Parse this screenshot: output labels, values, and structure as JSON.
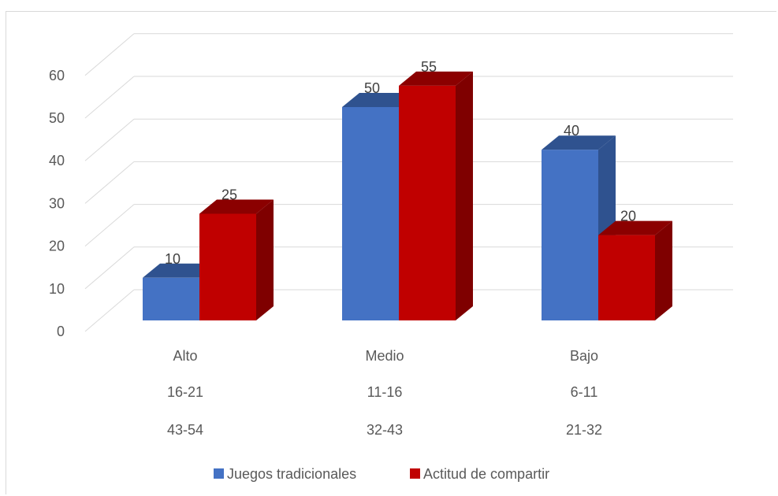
{
  "chart_data": {
    "type": "bar",
    "variant": "3d-clustered-column",
    "categories": [
      [
        "Alto",
        "16-21",
        "43-54"
      ],
      [
        "Medio",
        "11-16",
        "32-43"
      ],
      [
        "Bajo",
        "6-11",
        "21-32"
      ]
    ],
    "series": [
      {
        "name": "Juegos tradicionales",
        "values": [
          10,
          50,
          40
        ],
        "color": "#4472c4",
        "side_color": "#2f528f",
        "top_color": "#2f528f"
      },
      {
        "name": "Actitud de compartir",
        "values": [
          25,
          55,
          20
        ],
        "color": "#c00000",
        "side_color": "#7f0000",
        "top_color": "#8b0000"
      }
    ],
    "y_ticks": [
      "0",
      "10",
      "20",
      "30",
      "40",
      "50",
      "60"
    ],
    "ylim": [
      0,
      60
    ],
    "grid": true,
    "legend_position": "bottom",
    "data_labels": true,
    "title": "",
    "xlabel": "",
    "ylabel": ""
  }
}
